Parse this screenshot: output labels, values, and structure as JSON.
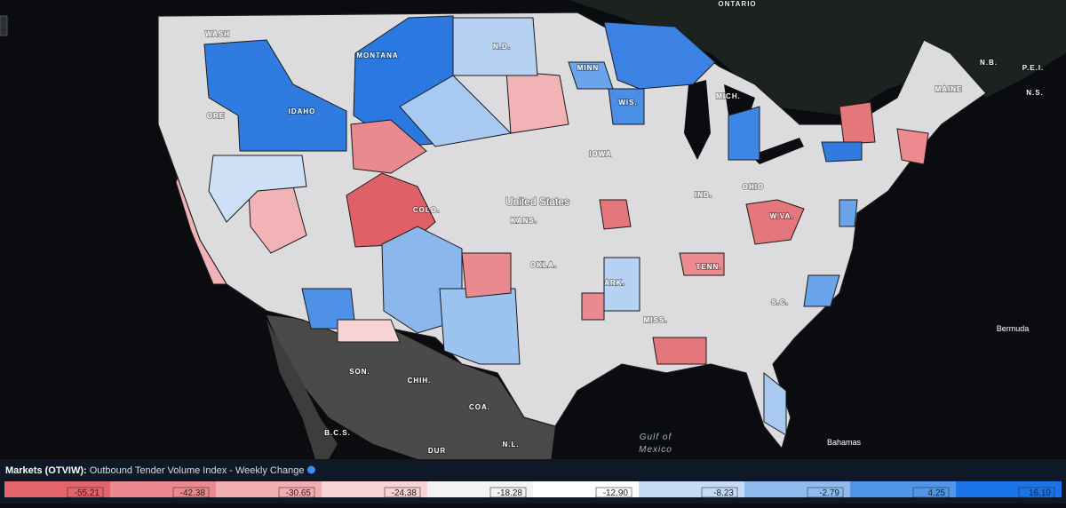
{
  "map": {
    "labels": [
      "ONTARIO",
      "WASH",
      "MONTANA",
      "N.D.",
      "MINN",
      "IDAHO",
      "ORE",
      "WIS.",
      "MICH.",
      "MAINE",
      "N.B.",
      "P.E.I.",
      "N.S.",
      "IOWA",
      "United States",
      "KANS.",
      "COLO.",
      "OKLA.",
      "ARK.",
      "TENN.",
      "W.VA.",
      "IND.",
      "OHIO",
      "MISS.",
      "S.C.",
      "Gulf of",
      "Mexico",
      "Bermuda",
      "Bahamas",
      "SON.",
      "CHIH.",
      "COA.",
      "N.L.",
      "DUR",
      "B.C.S."
    ]
  },
  "legend": {
    "title": "Markets (OTVIW):",
    "subtitle": "Outbound Tender Volume Index - Weekly Change",
    "breaks": [
      -55.21,
      -42.38,
      -30.65,
      -24.38,
      -18.28,
      {
        "value": -12.9,
        "label": "-12.90"
      },
      -8.23,
      -2.79,
      4.25,
      {
        "value": 16.1,
        "label": "16.10"
      }
    ],
    "colors": [
      "#e5646c",
      "#ec898e",
      "#f2adb1",
      "#f8d2d4",
      "#f3f3f5",
      "#ffffff",
      "#c6dbf5",
      "#90bbee",
      "#4f95e8",
      "#1a73e8"
    ]
  }
}
